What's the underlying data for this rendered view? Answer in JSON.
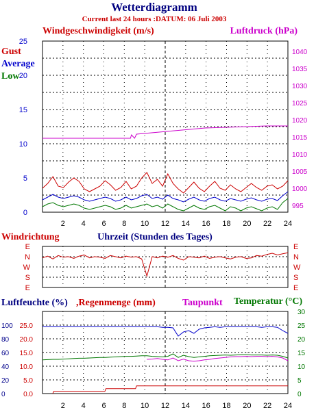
{
  "header": {
    "title": "Wetterdiagramm",
    "subtitle": "Current last 24 hours :DATUM: 06 Juli 2003"
  },
  "colors": {
    "title": "#000080",
    "red": "#cc0000",
    "blue": "#0000cc",
    "green": "#007700",
    "magenta": "#cc00cc",
    "navy": "#00008b",
    "grid": "#000000"
  },
  "chart_data": [
    {
      "type": "line",
      "x_ticks": [
        "2",
        "4",
        "6",
        "8",
        "10",
        "12",
        "14",
        "16",
        "18",
        "20",
        "22",
        "24"
      ],
      "left_axis": {
        "label": "Windgeschwindigkeit (m/s)",
        "ticks": [
          "0",
          "5",
          "10",
          "15",
          "20",
          "25"
        ],
        "ylim": [
          0,
          25
        ]
      },
      "right_axis": {
        "label": "Luftdruck (hPa)",
        "ticks": [
          "995",
          "1000",
          "1005",
          "1010",
          "1015",
          "1020",
          "1025",
          "1030",
          "1035",
          "1040"
        ],
        "ylim": [
          993,
          1043
        ]
      },
      "legend": [
        "Gust",
        "Average",
        "Low"
      ],
      "series": [
        {
          "name": "Gust",
          "axis": "left",
          "color": "#cc0000",
          "values": [
            3.5,
            4.2,
            5.2,
            3.8,
            3.6,
            4.4,
            5.0,
            4.5,
            3.4,
            3.0,
            3.4,
            3.8,
            4.6,
            4.0,
            3.2,
            3.6,
            4.5,
            3.4,
            3.8,
            5.0,
            5.8,
            4.2,
            4.8,
            3.8,
            5.6,
            4.2,
            3.4,
            2.8,
            3.6,
            4.4,
            3.5,
            3.0,
            3.8,
            4.5,
            3.5,
            3.2,
            4.0,
            3.4,
            3.0,
            3.6,
            4.2,
            3.6,
            3.2,
            3.8,
            4.0,
            3.4,
            3.8,
            4.6
          ]
        },
        {
          "name": "Average",
          "axis": "left",
          "color": "#0000cc",
          "values": [
            1.8,
            2.2,
            2.6,
            2.2,
            2.0,
            2.2,
            2.4,
            2.2,
            1.8,
            1.6,
            1.8,
            2.0,
            2.2,
            2.0,
            1.6,
            1.8,
            2.2,
            1.8,
            2.0,
            2.4,
            2.6,
            2.0,
            2.2,
            1.9,
            2.5,
            2.0,
            1.8,
            1.5,
            1.9,
            2.2,
            1.8,
            1.6,
            2.0,
            2.2,
            1.8,
            1.6,
            2.0,
            1.8,
            1.6,
            1.9,
            2.1,
            1.8,
            1.6,
            1.9,
            2.0,
            1.7,
            2.4,
            3.0
          ]
        },
        {
          "name": "Low",
          "axis": "left",
          "color": "#007700",
          "values": [
            0.8,
            1.2,
            1.4,
            1.0,
            0.8,
            1.0,
            1.2,
            1.0,
            0.6,
            0.4,
            0.6,
            0.8,
            1.0,
            0.8,
            0.4,
            0.6,
            1.0,
            0.6,
            0.8,
            1.0,
            1.2,
            0.8,
            1.0,
            0.6,
            1.2,
            0.8,
            0.4,
            0.2,
            0.6,
            1.0,
            0.6,
            0.4,
            0.8,
            1.0,
            0.6,
            0.2,
            0.8,
            0.6,
            0.2,
            0.6,
            0.8,
            0.5,
            0.2,
            0.6,
            0.8,
            0.4,
            1.4,
            2.0
          ]
        },
        {
          "name": "Luftdruck",
          "axis": "right",
          "color": "#cc00cc",
          "step_x": [
            0,
            8.6,
            8.7,
            9.0,
            9.2,
            12.9,
            15.9,
            21.9,
            24
          ],
          "values": [
            1014.6,
            1014.6,
            1015.6,
            1014.6,
            1015.8,
            1016.8,
            1017.6,
            1018.2,
            1018.2
          ]
        }
      ]
    },
    {
      "type": "line",
      "label_left": "Windrichtung",
      "label_center": "Uhrzeit (Stunden des Tages)",
      "y_ticks": [
        "E",
        "N",
        "W",
        "S",
        "E"
      ],
      "series": [
        {
          "name": "Windrichtung",
          "color": "#cc0000",
          "values": [
            260,
            275,
            250,
            280,
            265,
            270,
            255,
            275,
            285,
            260,
            270,
            265,
            255,
            280,
            270,
            260,
            275,
            265,
            270,
            250,
            100,
            270,
            260,
            275,
            265,
            280,
            255,
            240,
            270,
            265,
            260,
            275,
            255,
            265,
            270,
            260,
            250,
            265,
            270,
            255,
            260,
            280,
            275,
            290,
            300,
            285,
            295,
            305
          ]
        }
      ]
    },
    {
      "type": "line",
      "x_ticks": [
        "2",
        "4",
        "6",
        "8",
        "10",
        "12",
        "14",
        "16",
        "18",
        "20",
        "22",
        "24"
      ],
      "left_axis_percent": {
        "label": "Luftfeuchte (%)",
        "ticks": [
          "0",
          "20",
          "40",
          "60",
          "80",
          "100"
        ]
      },
      "left_axis_mm": {
        "label": "Regenmenge (mm)",
        "ticks": [
          "0.0",
          "5.0",
          "10.0",
          "15.0",
          "20.0",
          "25.0"
        ]
      },
      "right_axis": {
        "label": "Temperatur (",
        "label_unit": "°C",
        "label_end": ")",
        "ticks": [
          "0",
          "5",
          "10",
          "15",
          "20",
          "25",
          "30"
        ],
        "ylim": [
          0,
          30
        ]
      },
      "extra_label": "Taupunkt",
      "series": [
        {
          "name": "Luftfeuchte",
          "color": "#0000cc",
          "values": [
            24.4,
            24.4,
            24.4,
            24.4,
            24.4,
            24.4,
            24.4,
            24.4,
            24.4,
            24.4,
            24.4,
            24.4,
            24.4,
            24.4,
            24.4,
            24.4,
            24.4,
            24.4,
            24.4,
            24.4,
            24.4,
            24.4,
            24.4,
            24.2,
            24.2,
            24.0,
            21.0,
            22.5,
            23.0,
            22.0,
            23.5,
            24.0,
            24.2,
            24.4,
            24.2,
            24.4,
            24.4,
            24.4,
            24.4,
            24.4,
            24.4,
            24.4,
            24.2,
            24.4,
            24.4,
            24.2,
            23.0,
            22.0
          ]
        },
        {
          "name": "Temperatur",
          "color": "#007700",
          "values": [
            12.3,
            12.4,
            12.5,
            12.5,
            12.6,
            12.7,
            12.8,
            12.9,
            12.9,
            13.0,
            13.1,
            13.2,
            13.2,
            13.3,
            13.4,
            13.5,
            13.6,
            13.6,
            13.7,
            13.8,
            13.8,
            13.6,
            13.5,
            13.4,
            13.6,
            14.5,
            13.2,
            14.0,
            13.5,
            13.2,
            13.4,
            13.6,
            13.8,
            13.9,
            14.0,
            14.1,
            14.0,
            14.1,
            14.2,
            14.2,
            14.1,
            14.1,
            14.1,
            14.0,
            14.1,
            14.0,
            13.6,
            13.0
          ]
        },
        {
          "name": "Taupunkt",
          "color": "#cc00cc",
          "values": [
            null,
            null,
            null,
            null,
            null,
            null,
            null,
            null,
            null,
            null,
            null,
            null,
            null,
            null,
            null,
            null,
            null,
            null,
            null,
            null,
            12.5,
            12.6,
            12.8,
            12.5,
            12.3,
            13.0,
            12.0,
            12.6,
            12.0,
            11.8,
            12.0,
            12.3,
            12.5,
            12.8,
            13.0,
            13.2,
            13.4,
            13.5,
            13.5,
            13.6,
            13.5,
            13.6,
            13.6,
            13.5,
            13.6,
            13.4,
            13.0,
            12.0
          ]
        },
        {
          "name": "Regenmenge",
          "color": "#cc0000",
          "step_x": [
            1,
            1.1,
            6.1,
            6.2,
            9.1,
            9.2,
            24
          ],
          "values": [
            0.0,
            0.8,
            0.8,
            1.8,
            1.8,
            2.8,
            2.8
          ]
        }
      ]
    }
  ]
}
